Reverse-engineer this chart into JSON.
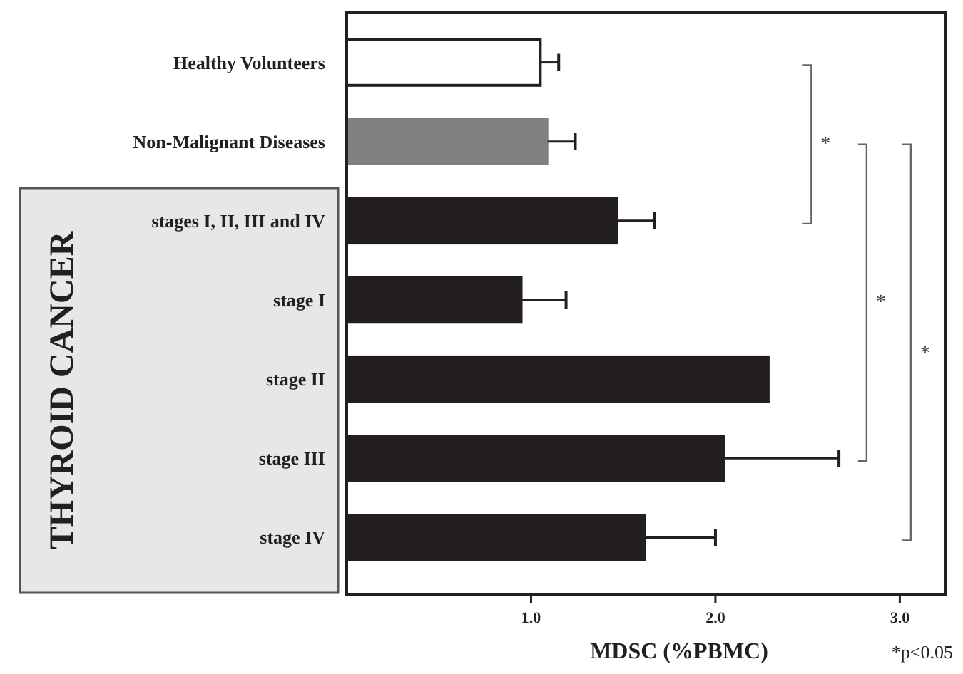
{
  "chart_data": {
    "type": "bar",
    "orientation": "horizontal",
    "categories": [
      "Healthy Volunteers",
      "Non-Malignant Diseases",
      "stages I, II, III and IV",
      "stage I",
      "stage II",
      "stage III",
      "stage IV"
    ],
    "values": [
      1.05,
      1.09,
      1.47,
      0.95,
      2.29,
      2.05,
      1.62
    ],
    "errors": [
      0.1,
      0.15,
      0.2,
      0.24,
      null,
      0.62,
      0.38
    ],
    "colors": [
      "#ffffff",
      "#808080",
      "#231f20",
      "#231f20",
      "#231f20",
      "#231f20",
      "#231f20"
    ],
    "xlim": [
      0,
      3.25
    ],
    "xticks": [
      {
        "value": 1,
        "label": "1.0"
      },
      {
        "value": 2,
        "label": "2.0"
      },
      {
        "value": 3,
        "label": "3.0"
      }
    ],
    "xlabel": "MDSC (%PBMC)",
    "annotations": [
      "THYROID CANCER",
      "*",
      "*",
      "*",
      "*p<0.05"
    ]
  }
}
